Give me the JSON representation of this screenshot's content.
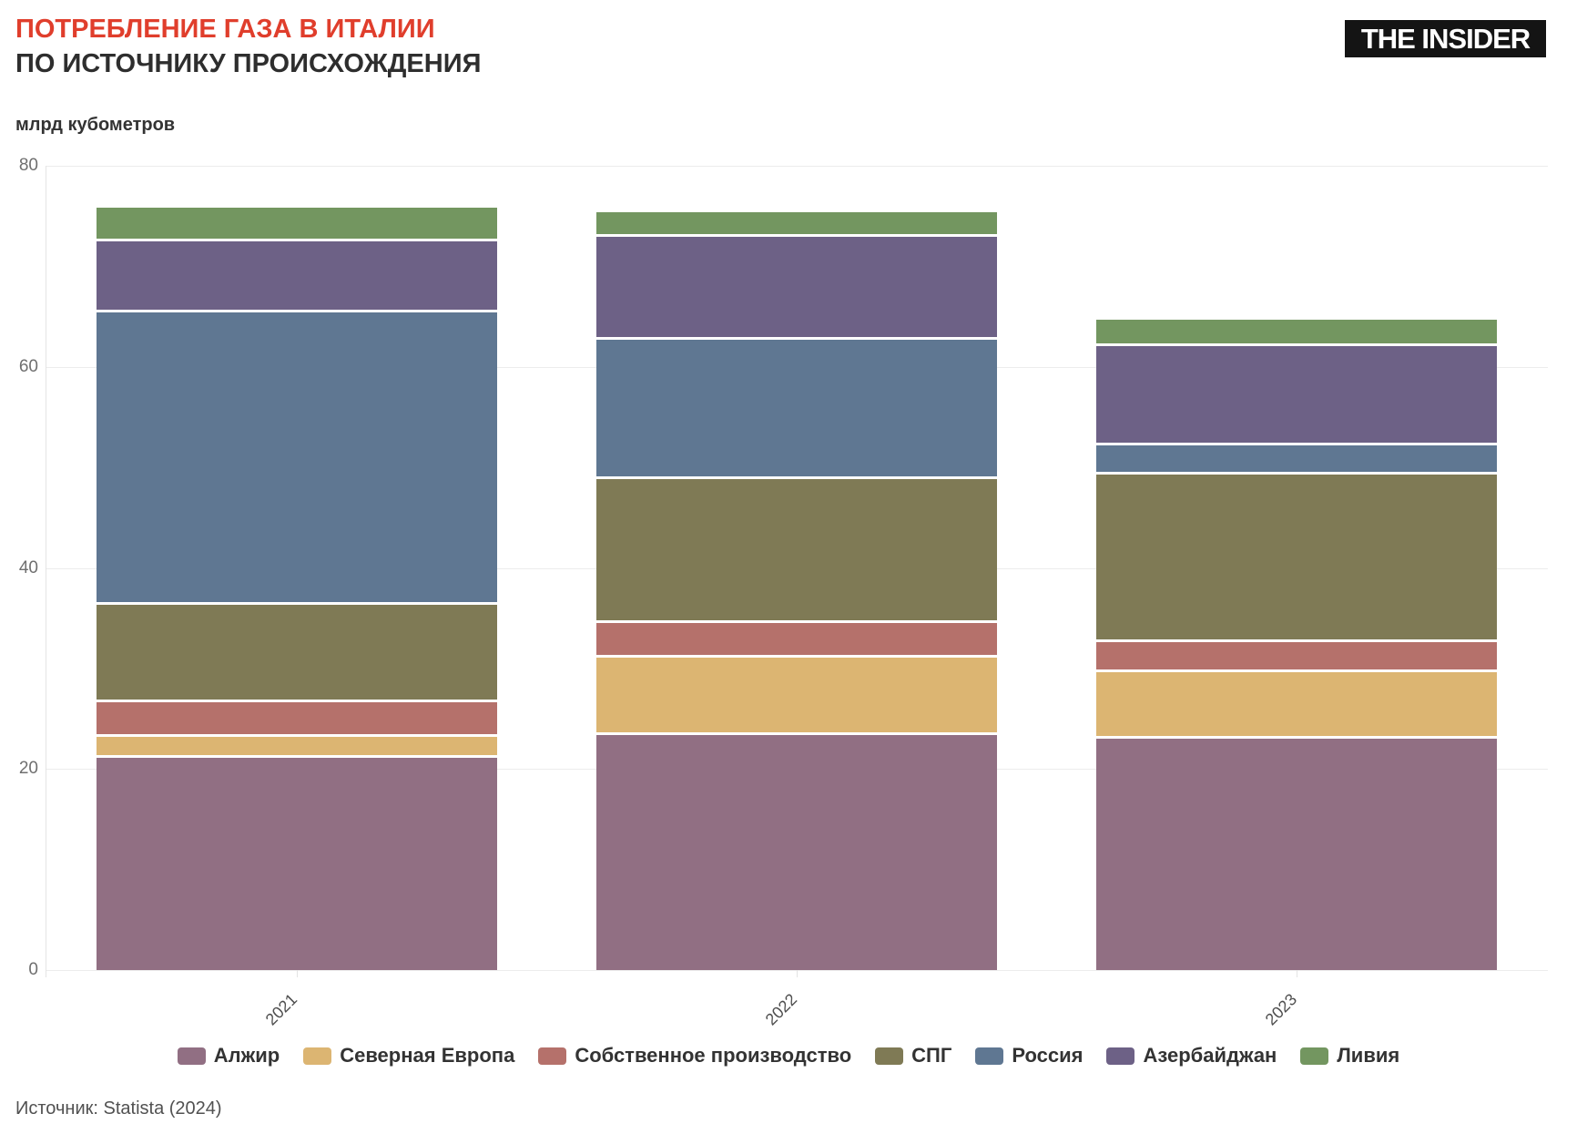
{
  "header": {
    "title_line1": "ПОТРЕБЛЕНИЕ ГАЗА В ИТАЛИИ",
    "title_line2": "ПО ИСТОЧНИКУ ПРОИСХОЖДЕНИЯ",
    "title_color": "#e03e2c",
    "logo_text": "THE INSIDER"
  },
  "source_text": "Источник: Statista (2024)",
  "chart_data": {
    "type": "bar",
    "stacked": true,
    "title": "ПОТРЕБЛЕНИЕ ГАЗА В ИТАЛИИ",
    "subtitle": "ПО ИСТОЧНИКУ ПРОИСХОЖДЕНИЯ",
    "ylabel": "млрд кубометров",
    "xlabel": "",
    "ylim": [
      0,
      80
    ],
    "yticks": [
      0,
      20,
      40,
      60,
      80
    ],
    "grid": true,
    "legend_position": "bottom",
    "categories": [
      "2021",
      "2022",
      "2023"
    ],
    "series": [
      {
        "name": "Алжир",
        "color": "#916f83",
        "values": [
          21.1,
          23.4,
          23.0
        ]
      },
      {
        "name": "Северная Европа",
        "color": "#dcb572",
        "values": [
          2.1,
          7.7,
          6.6
        ]
      },
      {
        "name": "Собственное производство",
        "color": "#b5716b",
        "values": [
          3.4,
          3.4,
          3.0
        ]
      },
      {
        "name": "СПГ",
        "color": "#7f7a55",
        "values": [
          9.7,
          14.3,
          16.7
        ]
      },
      {
        "name": "Россия",
        "color": "#5f7792",
        "values": [
          29.1,
          13.9,
          2.9
        ]
      },
      {
        "name": "Азербайджан",
        "color": "#6d6186",
        "values": [
          7.1,
          10.2,
          9.9
        ]
      },
      {
        "name": "Ливия",
        "color": "#739660",
        "values": [
          3.3,
          2.5,
          2.6
        ]
      }
    ],
    "totals": [
      75.7,
      75.4,
      64.7
    ]
  },
  "layout_note": ""
}
